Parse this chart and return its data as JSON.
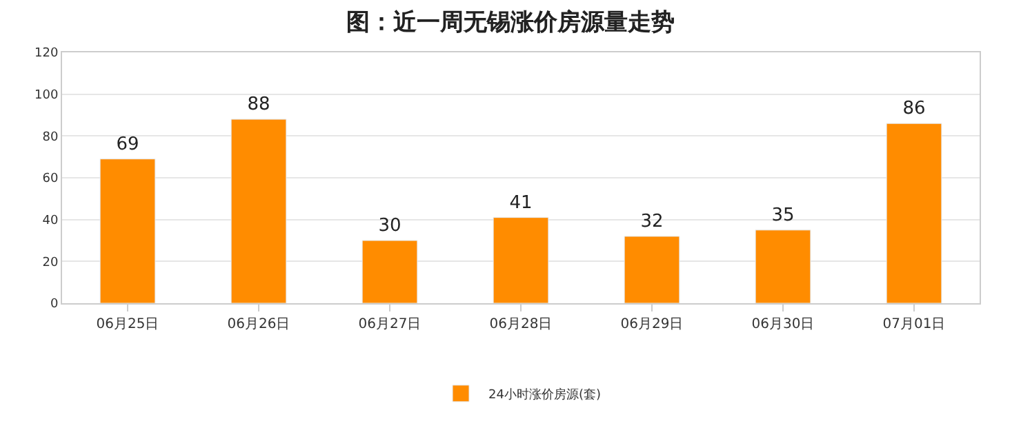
{
  "chart_data": {
    "type": "bar",
    "title": "图：近一周无锡涨价房源量走势",
    "categories": [
      "06月25日",
      "06月26日",
      "06月27日",
      "06月28日",
      "06月29日",
      "06月30日",
      "07月01日"
    ],
    "series": [
      {
        "name": "24小时涨价房源(套)",
        "color": "#ff8c00",
        "values": [
          69,
          88,
          30,
          41,
          32,
          35,
          86
        ]
      }
    ],
    "ylim": [
      0,
      120
    ],
    "yticks": [
      0,
      20,
      40,
      60,
      80,
      100,
      120
    ],
    "grid": "y",
    "legend": "bottom",
    "data_labels": true
  }
}
